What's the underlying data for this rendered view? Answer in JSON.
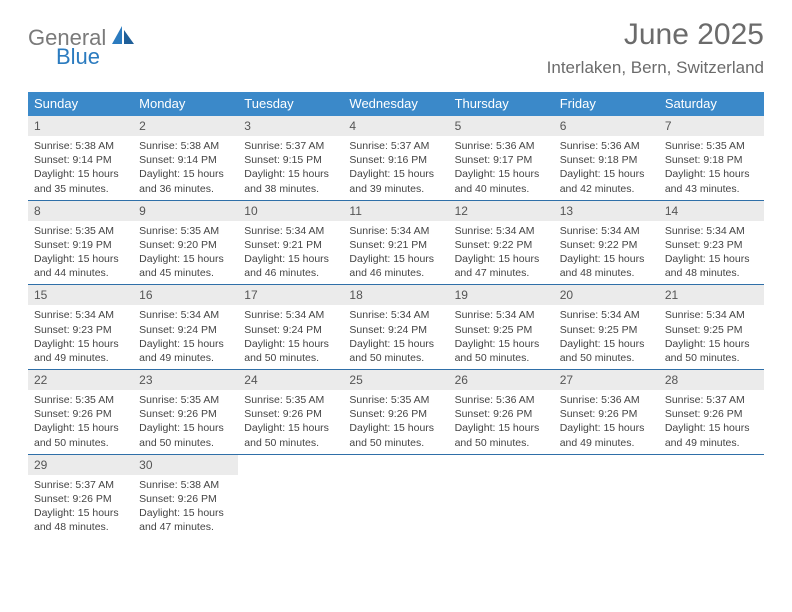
{
  "logo": {
    "gray": "General",
    "blue": "Blue"
  },
  "title": "June 2025",
  "location": "Interlaken, Bern, Switzerland",
  "colors": {
    "header_bg": "#3b89c9",
    "row_border": "#2f6fa8",
    "daynum_bg": "#ebebeb",
    "text": "#444444",
    "title_text": "#6b6b6b",
    "logo_gray": "#7a7a7a",
    "logo_blue": "#2b7bbf"
  },
  "weekdays": [
    "Sunday",
    "Monday",
    "Tuesday",
    "Wednesday",
    "Thursday",
    "Friday",
    "Saturday"
  ],
  "weeks": [
    [
      {
        "d": "1",
        "sr": "5:38 AM",
        "ss": "9:14 PM",
        "dl": "15 hours and 35 minutes."
      },
      {
        "d": "2",
        "sr": "5:38 AM",
        "ss": "9:14 PM",
        "dl": "15 hours and 36 minutes."
      },
      {
        "d": "3",
        "sr": "5:37 AM",
        "ss": "9:15 PM",
        "dl": "15 hours and 38 minutes."
      },
      {
        "d": "4",
        "sr": "5:37 AM",
        "ss": "9:16 PM",
        "dl": "15 hours and 39 minutes."
      },
      {
        "d": "5",
        "sr": "5:36 AM",
        "ss": "9:17 PM",
        "dl": "15 hours and 40 minutes."
      },
      {
        "d": "6",
        "sr": "5:36 AM",
        "ss": "9:18 PM",
        "dl": "15 hours and 42 minutes."
      },
      {
        "d": "7",
        "sr": "5:35 AM",
        "ss": "9:18 PM",
        "dl": "15 hours and 43 minutes."
      }
    ],
    [
      {
        "d": "8",
        "sr": "5:35 AM",
        "ss": "9:19 PM",
        "dl": "15 hours and 44 minutes."
      },
      {
        "d": "9",
        "sr": "5:35 AM",
        "ss": "9:20 PM",
        "dl": "15 hours and 45 minutes."
      },
      {
        "d": "10",
        "sr": "5:34 AM",
        "ss": "9:21 PM",
        "dl": "15 hours and 46 minutes."
      },
      {
        "d": "11",
        "sr": "5:34 AM",
        "ss": "9:21 PM",
        "dl": "15 hours and 46 minutes."
      },
      {
        "d": "12",
        "sr": "5:34 AM",
        "ss": "9:22 PM",
        "dl": "15 hours and 47 minutes."
      },
      {
        "d": "13",
        "sr": "5:34 AM",
        "ss": "9:22 PM",
        "dl": "15 hours and 48 minutes."
      },
      {
        "d": "14",
        "sr": "5:34 AM",
        "ss": "9:23 PM",
        "dl": "15 hours and 48 minutes."
      }
    ],
    [
      {
        "d": "15",
        "sr": "5:34 AM",
        "ss": "9:23 PM",
        "dl": "15 hours and 49 minutes."
      },
      {
        "d": "16",
        "sr": "5:34 AM",
        "ss": "9:24 PM",
        "dl": "15 hours and 49 minutes."
      },
      {
        "d": "17",
        "sr": "5:34 AM",
        "ss": "9:24 PM",
        "dl": "15 hours and 50 minutes."
      },
      {
        "d": "18",
        "sr": "5:34 AM",
        "ss": "9:24 PM",
        "dl": "15 hours and 50 minutes."
      },
      {
        "d": "19",
        "sr": "5:34 AM",
        "ss": "9:25 PM",
        "dl": "15 hours and 50 minutes."
      },
      {
        "d": "20",
        "sr": "5:34 AM",
        "ss": "9:25 PM",
        "dl": "15 hours and 50 minutes."
      },
      {
        "d": "21",
        "sr": "5:34 AM",
        "ss": "9:25 PM",
        "dl": "15 hours and 50 minutes."
      }
    ],
    [
      {
        "d": "22",
        "sr": "5:35 AM",
        "ss": "9:26 PM",
        "dl": "15 hours and 50 minutes."
      },
      {
        "d": "23",
        "sr": "5:35 AM",
        "ss": "9:26 PM",
        "dl": "15 hours and 50 minutes."
      },
      {
        "d": "24",
        "sr": "5:35 AM",
        "ss": "9:26 PM",
        "dl": "15 hours and 50 minutes."
      },
      {
        "d": "25",
        "sr": "5:35 AM",
        "ss": "9:26 PM",
        "dl": "15 hours and 50 minutes."
      },
      {
        "d": "26",
        "sr": "5:36 AM",
        "ss": "9:26 PM",
        "dl": "15 hours and 50 minutes."
      },
      {
        "d": "27",
        "sr": "5:36 AM",
        "ss": "9:26 PM",
        "dl": "15 hours and 49 minutes."
      },
      {
        "d": "28",
        "sr": "5:37 AM",
        "ss": "9:26 PM",
        "dl": "15 hours and 49 minutes."
      }
    ],
    [
      {
        "d": "29",
        "sr": "5:37 AM",
        "ss": "9:26 PM",
        "dl": "15 hours and 48 minutes."
      },
      {
        "d": "30",
        "sr": "5:38 AM",
        "ss": "9:26 PM",
        "dl": "15 hours and 47 minutes."
      },
      null,
      null,
      null,
      null,
      null
    ]
  ],
  "labels": {
    "sunrise": "Sunrise:",
    "sunset": "Sunset:",
    "daylight": "Daylight:"
  }
}
